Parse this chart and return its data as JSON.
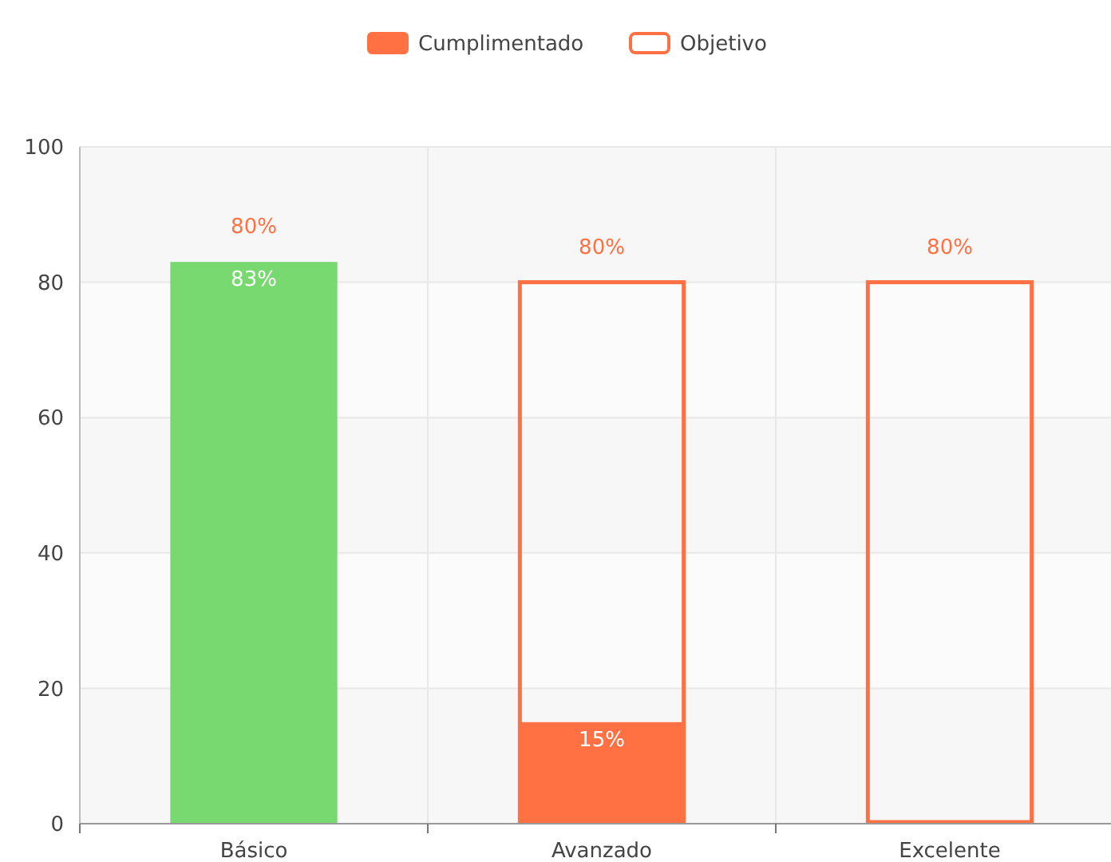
{
  "chart_data": {
    "type": "bar",
    "categories": [
      "Básico",
      "Avanzado",
      "Excelente"
    ],
    "series": [
      {
        "name": "Cumplimentado",
        "color": "#ff7043",
        "colors": [
          "#77d970",
          "#ff7043",
          "#ff7043"
        ],
        "values": [
          83,
          15,
          0
        ],
        "value_labels": [
          "83%",
          "15%",
          null
        ]
      },
      {
        "name": "Objetivo",
        "color": "#ff7043",
        "values": [
          null,
          80,
          80
        ],
        "value_labels": [
          "80%",
          "80%",
          "80%"
        ]
      }
    ],
    "ylim": [
      0,
      100
    ],
    "yticks": [
      0,
      20,
      40,
      60,
      80,
      100
    ],
    "grid": true,
    "legend": "top"
  }
}
